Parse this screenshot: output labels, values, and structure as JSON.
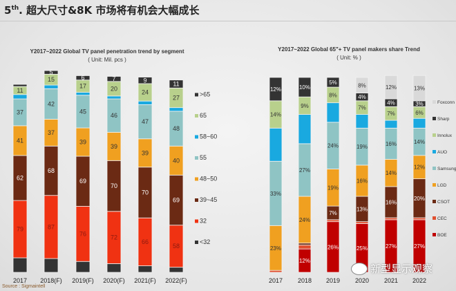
{
  "slide": {
    "title_prefix": "5",
    "title_sup": "th",
    "title_rest": ". 超大尺寸&8K 市场将有机会大幅成长",
    "source": "Source : Sigmaintell",
    "watermark": "新型显示观察"
  },
  "chart_data": [
    {
      "type": "bar",
      "stacked": true,
      "title": "Y2017~2022 Global TV panel penetration trend by segment",
      "unit": "( Unit: Mil. pcs )",
      "categories": [
        "2017",
        "2018(F)",
        "2019(F)",
        "2020(F)",
        "2021(F)",
        "2022(F)"
      ],
      "legend_position": "right",
      "series": [
        {
          "name": "<32",
          "color": "#333333",
          "values": [
            20,
            19,
            15,
            12,
            9,
            7
          ],
          "labels": [
            null,
            null,
            null,
            null,
            null,
            null
          ]
        },
        {
          "name": "32",
          "color": "#f03212",
          "values": [
            79,
            87,
            76,
            72,
            66,
            58
          ],
          "labels": [
            "79",
            "87",
            "76",
            "72",
            "66",
            "58"
          ]
        },
        {
          "name": "39~45",
          "color": "#6b2a14",
          "values": [
            62,
            68,
            69,
            70,
            70,
            69
          ],
          "labels": [
            "62",
            "68",
            "69",
            "70",
            "70",
            "69"
          ]
        },
        {
          "name": "48~50",
          "color": "#f0a020",
          "values": [
            41,
            37,
            39,
            39,
            39,
            40
          ],
          "labels": [
            "41",
            "37",
            "39",
            "39",
            "39",
            "40"
          ]
        },
        {
          "name": "55",
          "color": "#8fc4c4",
          "values": [
            37,
            42,
            45,
            46,
            47,
            48
          ],
          "labels": [
            "37",
            "42",
            "45",
            "46",
            "47",
            "48"
          ]
        },
        {
          "name": "58~60",
          "color": "#19a9e0",
          "values": [
            6,
            5,
            4,
            4,
            5,
            5
          ],
          "labels": [
            null,
            null,
            null,
            null,
            null,
            null
          ]
        },
        {
          "name": "65",
          "color": "#b8d08c",
          "values": [
            11,
            15,
            17,
            20,
            24,
            27
          ],
          "labels": [
            "11",
            "15",
            "17",
            "20",
            "24",
            "27"
          ]
        },
        {
          "name": ">65",
          "color": "#333333",
          "values": [
            3,
            5,
            6,
            7,
            9,
            11
          ],
          "labels": [
            null,
            "5",
            "6",
            "7",
            "9",
            "11"
          ]
        }
      ]
    },
    {
      "type": "bar",
      "stacked": true,
      "title": "Y2017~2022 Global 65\"+ TV panel makers share Trend",
      "unit": "( Unit: % )",
      "categories": [
        "2017",
        "2018",
        "2019",
        "2020",
        "2021",
        "2022"
      ],
      "legend_position": "right",
      "series": [
        {
          "name": "BOE",
          "color": "#c00000",
          "values": [
            0,
            12,
            26,
            25,
            27,
            27
          ],
          "labels": [
            null,
            "12%",
            "26%",
            "25%",
            "27%",
            "27%"
          ]
        },
        {
          "name": "CEC",
          "color": "#e05030",
          "values": [
            1,
            2,
            1,
            1,
            1,
            1
          ],
          "labels": [
            null,
            null,
            null,
            null,
            null,
            null
          ]
        },
        {
          "name": "CSOT",
          "color": "#6b2a14",
          "values": [
            0,
            1,
            7,
            13,
            16,
            20
          ],
          "labels": [
            null,
            null,
            "7%",
            "13%",
            "16%",
            "20%"
          ]
        },
        {
          "name": "LGD",
          "color": "#f0a020",
          "values": [
            23,
            24,
            19,
            16,
            14,
            12
          ],
          "labels": [
            "23%",
            "24%",
            "19%",
            "16%",
            "14%",
            "12%"
          ]
        },
        {
          "name": "Samsung",
          "color": "#8fc4c4",
          "values": [
            33,
            27,
            24,
            19,
            16,
            14
          ],
          "labels": [
            "33%",
            "27%",
            "24%",
            "19%",
            "16%",
            "14%"
          ]
        },
        {
          "name": "AUO",
          "color": "#19a9e0",
          "values": [
            17,
            15,
            10,
            7,
            4,
            5
          ],
          "labels": [
            null,
            null,
            null,
            null,
            null,
            null
          ]
        },
        {
          "name": "Innolux",
          "color": "#b8d08c",
          "values": [
            14,
            9,
            8,
            7,
            7,
            6
          ],
          "labels": [
            "14%",
            "9%",
            "8%",
            "7%",
            "7%",
            "6%"
          ]
        },
        {
          "name": "Sharp",
          "color": "#333333",
          "values": [
            12,
            10,
            5,
            4,
            4,
            3
          ],
          "labels": [
            "12%",
            "10%",
            "5%",
            "4%",
            "4%",
            "3%"
          ]
        },
        {
          "name": "Foxconn",
          "color": "#d9d9d9",
          "values": [
            0,
            0,
            0,
            8,
            12,
            13
          ],
          "labels": [
            null,
            null,
            null,
            "8%",
            "12%",
            "13%"
          ]
        }
      ]
    }
  ]
}
